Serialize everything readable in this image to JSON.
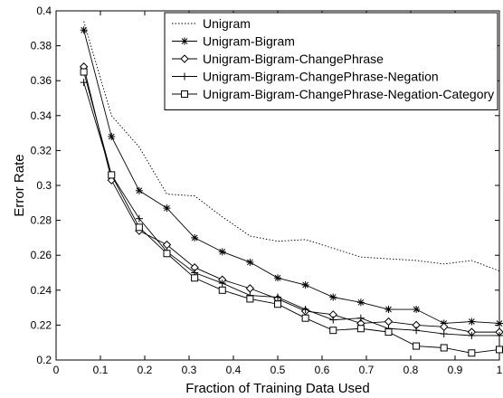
{
  "chart_data": {
    "type": "line",
    "xlabel": "Fraction of Training Data Used",
    "ylabel": "Error Rate",
    "xlim": [
      0,
      1
    ],
    "ylim": [
      0.2,
      0.4
    ],
    "xticks": [
      0,
      0.1,
      0.2,
      0.3,
      0.4,
      0.5,
      0.6,
      0.7,
      0.8,
      0.9,
      1
    ],
    "xtick_labels": [
      "0",
      "0.1",
      "0.2",
      "0.3",
      "0.4",
      "0.5",
      "0.6",
      "0.7",
      "0.8",
      "0.9",
      "1"
    ],
    "yticks": [
      0.2,
      0.22,
      0.24,
      0.26,
      0.28,
      0.3,
      0.32,
      0.34,
      0.36,
      0.38,
      0.4
    ],
    "ytick_labels": [
      "0.2",
      "0.22",
      "0.24",
      "0.26",
      "0.28",
      "0.3",
      "0.32",
      "0.34",
      "0.36",
      "0.38",
      "0.4"
    ],
    "grid": false,
    "legend_position": "top-right",
    "x": [
      0.0625,
      0.125,
      0.1875,
      0.25,
      0.3125,
      0.375,
      0.4375,
      0.5,
      0.5625,
      0.625,
      0.6875,
      0.75,
      0.8125,
      0.875,
      0.9375,
      1.0
    ],
    "series": [
      {
        "name": "Unigram",
        "marker": "none",
        "line_style": "dotted",
        "values": [
          0.394,
          0.34,
          0.322,
          0.295,
          0.294,
          0.282,
          0.271,
          0.268,
          0.269,
          0.264,
          0.259,
          0.258,
          0.257,
          0.255,
          0.257,
          0.251
        ]
      },
      {
        "name": "Unigram-Bigram",
        "marker": "asterisk",
        "line_style": "solid",
        "values": [
          0.389,
          0.328,
          0.297,
          0.287,
          0.27,
          0.262,
          0.256,
          0.247,
          0.243,
          0.236,
          0.233,
          0.229,
          0.229,
          0.221,
          0.222,
          0.221
        ]
      },
      {
        "name": "Unigram-Bigram-ChangePhrase",
        "marker": "diamond",
        "line_style": "solid",
        "values": [
          0.368,
          0.303,
          0.274,
          0.266,
          0.253,
          0.246,
          0.241,
          0.235,
          0.228,
          0.226,
          0.221,
          0.222,
          0.22,
          0.219,
          0.216,
          0.216
        ]
      },
      {
        "name": "Unigram-Bigram-ChangePhrase-Negation",
        "marker": "plus",
        "line_style": "solid",
        "values": [
          0.359,
          0.306,
          0.281,
          0.262,
          0.25,
          0.244,
          0.237,
          0.236,
          0.229,
          0.223,
          0.224,
          0.218,
          0.217,
          0.215,
          0.214,
          0.214
        ]
      },
      {
        "name": "Unigram-Bigram-ChangePhrase-Negation-Category",
        "marker": "square",
        "line_style": "solid",
        "values": [
          0.365,
          0.306,
          0.276,
          0.261,
          0.247,
          0.24,
          0.235,
          0.232,
          0.224,
          0.217,
          0.218,
          0.216,
          0.208,
          0.207,
          0.204,
          0.206
        ]
      }
    ]
  }
}
